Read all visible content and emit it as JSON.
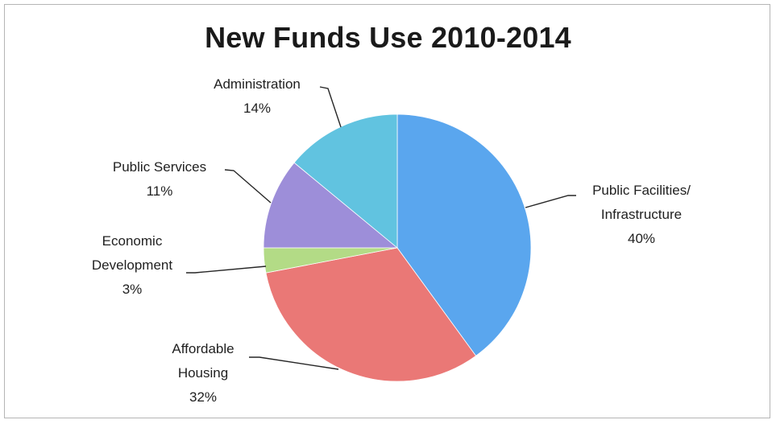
{
  "chart_data": {
    "type": "pie",
    "title": "New Funds Use 2010-2014",
    "slices": [
      {
        "label_lines": [
          "Public Facilities/",
          "Infrastructure"
        ],
        "pct_text": "40%",
        "value": 40,
        "color": "#5aa6ee",
        "label_side": "right"
      },
      {
        "label_lines": [
          "Affordable",
          "Housing"
        ],
        "pct_text": "32%",
        "value": 32,
        "color": "#ea7876",
        "label_side": "left"
      },
      {
        "label_lines": [
          "Economic",
          "Development"
        ],
        "pct_text": "3%",
        "value": 3,
        "color": "#b3db86",
        "label_side": "left"
      },
      {
        "label_lines": [
          "Public Services"
        ],
        "pct_text": "11%",
        "value": 11,
        "color": "#9d8ed9",
        "label_side": "left"
      },
      {
        "label_lines": [
          "Administration"
        ],
        "pct_text": "14%",
        "value": 14,
        "color": "#61c3e0",
        "label_side": "left"
      }
    ]
  }
}
